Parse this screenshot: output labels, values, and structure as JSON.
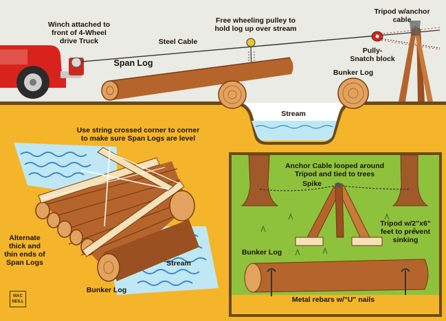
{
  "labels": {
    "winch": "Winch attached to\nfront of 4-Wheel\ndrive Truck",
    "steel_cable": "Steel Cable",
    "free_pulley": "Free wheeling pulley to\nhold log up over stream",
    "tripod_anchor": "Tripod w/anchor\ncable",
    "pully_snatch": "Pully-\nSnatch block",
    "span_log": "Span Log",
    "bunker_log_top": "Bunker Log",
    "stream_top": "Stream",
    "string_note": "Use string crossed corner to corner\nto make sure Span Logs are level",
    "alternate_note": "Alternate\nthick and\nthin ends of\nSpan Logs",
    "stream_bottom": "Stream",
    "bunker_log_bottom": "Bunker Log",
    "anchor_cable_note": "Anchor Cable looped around\nTripod and tied to trees",
    "spike": "Spike",
    "tripod_feet": "Tripod w/2\"x6\"\nfeet to prevent\nsinking",
    "bunker_log_inset": "Bunker Log",
    "rebars": "Metal rebars w/\"U\" nails"
  },
  "logo_text": "MAC\nNEILL",
  "colors": {
    "sky": "#e9ebe4",
    "ground": "#f4b52a",
    "soil_dark": "#6b4a1c",
    "log": "#b5652b",
    "log_light": "#e2a35e",
    "water": "#bfe8f4",
    "water_line": "#3a86c8",
    "grass": "#8fc23c",
    "truck": "#d8231c"
  }
}
